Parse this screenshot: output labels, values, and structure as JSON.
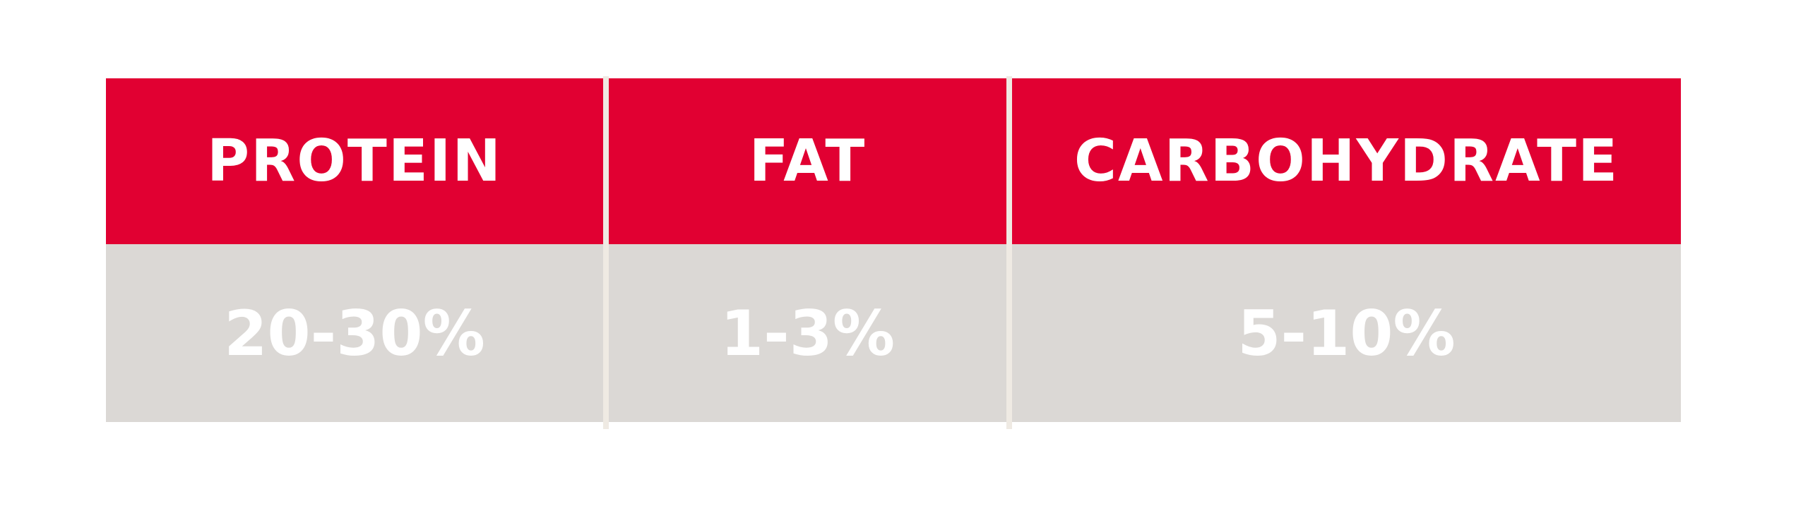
{
  "colors": {
    "header": "#e10032",
    "body": "#dbd8d5",
    "text": "#ffffff",
    "divider": "#efeae3"
  },
  "table": {
    "columns": [
      {
        "header": "PROTEIN",
        "value": "20-30%"
      },
      {
        "header": "FAT",
        "value": "1-3%"
      },
      {
        "header": "CARBOHYDRATE",
        "value": "5-10%"
      }
    ]
  }
}
